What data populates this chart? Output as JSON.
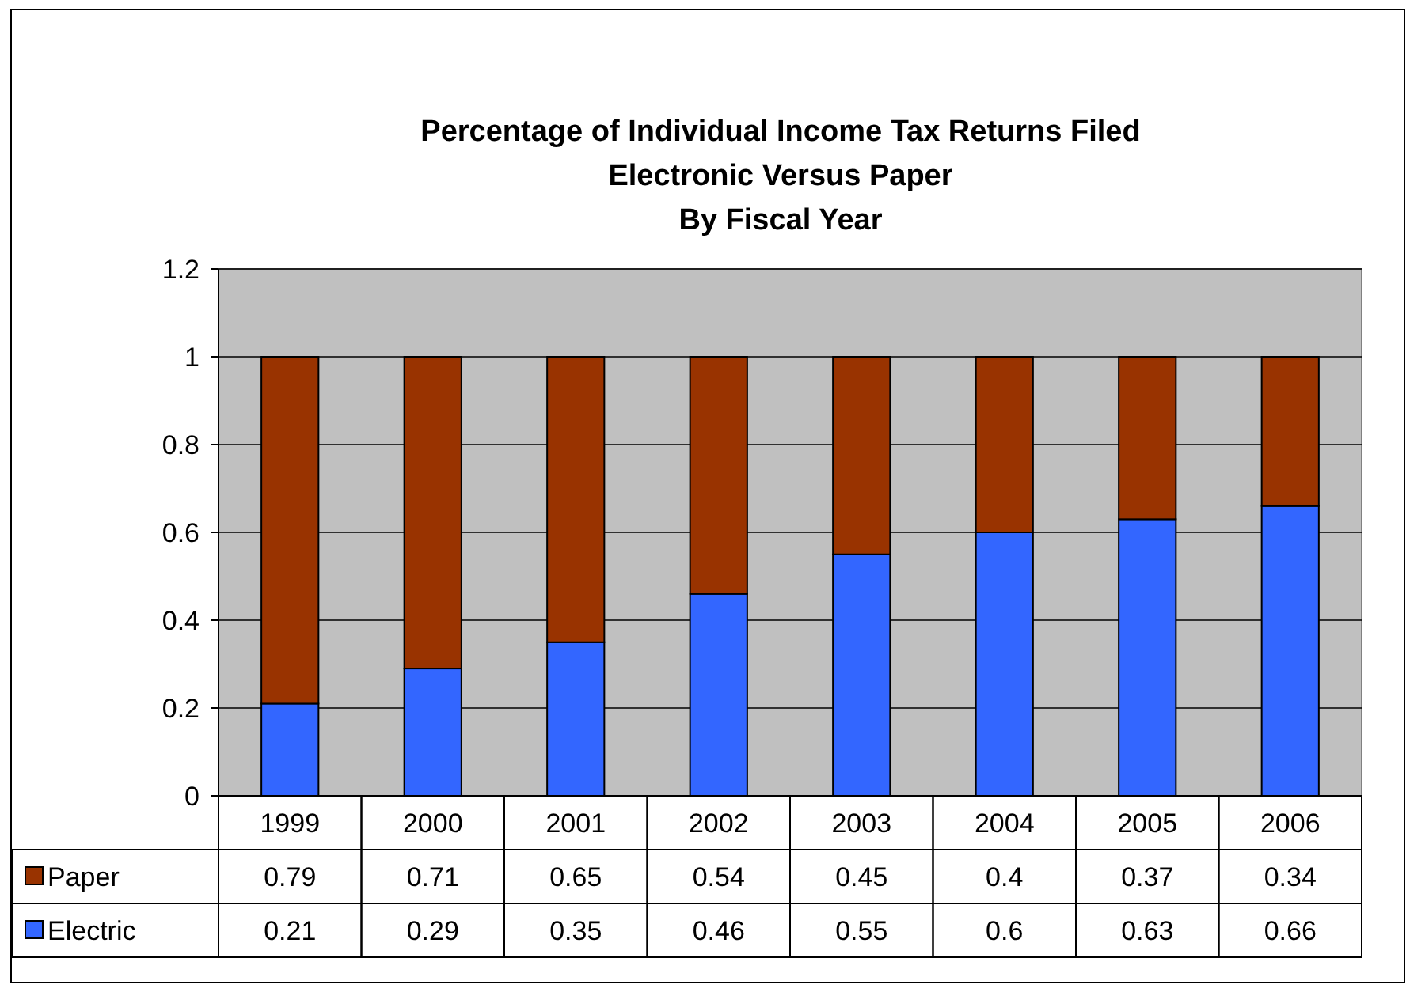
{
  "chart_data": {
    "type": "bar",
    "title": "Percentage of Individual Income Tax Returns Filed\nElectronic Versus Paper\nBy Fiscal Year",
    "categories": [
      "1999",
      "2000",
      "2001",
      "2002",
      "2003",
      "2004",
      "2005",
      "2006"
    ],
    "series": [
      {
        "name": "Electric",
        "color": "#3366ff",
        "values": [
          0.21,
          0.29,
          0.35,
          0.46,
          0.55,
          0.6,
          0.63,
          0.66
        ]
      },
      {
        "name": "Paper",
        "color": "#993300",
        "values": [
          0.79,
          0.71,
          0.65,
          0.54,
          0.45,
          0.4,
          0.37,
          0.34
        ]
      }
    ],
    "stacked": true,
    "ylim": [
      0,
      1.2
    ],
    "yticks": [
      0,
      0.2,
      0.4,
      0.6,
      0.8,
      1,
      1.2
    ],
    "grid": "y",
    "legend": "bottom",
    "data_labels": true
  }
}
